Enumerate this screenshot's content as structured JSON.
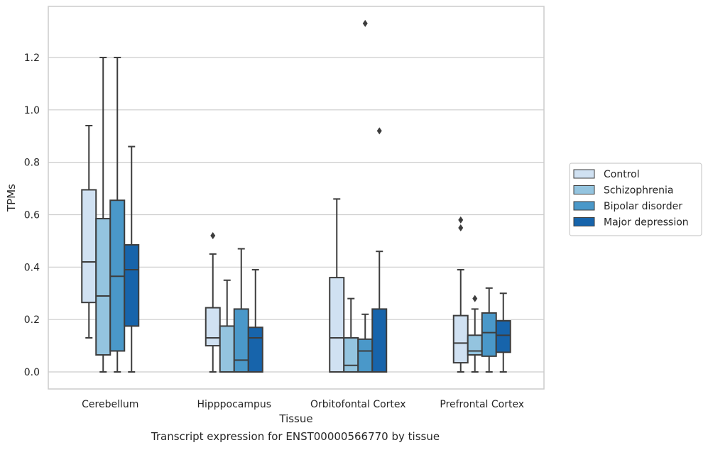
{
  "chart_data": {
    "type": "box",
    "caption": "Transcript expression for ENST00000566770 by tissue",
    "xlabel": "Tissue",
    "ylabel": "TPMs",
    "ylim": [
      -0.065,
      1.395
    ],
    "yticks": [
      0.0,
      0.2,
      0.4,
      0.6,
      0.8,
      1.0,
      1.2
    ],
    "ytick_labels": [
      "0.0",
      "0.2",
      "0.4",
      "0.6",
      "0.8",
      "1.0",
      "1.2"
    ],
    "grid": "horizontal",
    "legend_position": "right",
    "categories": [
      "Cerebellum",
      "Hipppocampus",
      "Orbitofontal Cortex",
      "Prefrontal Cortex"
    ],
    "series": [
      {
        "name": "Control",
        "color": "#d0e1f2",
        "boxes": [
          {
            "whislo": 0.13,
            "q1": 0.265,
            "med": 0.42,
            "q3": 0.695,
            "whishi": 0.94,
            "fliers": []
          },
          {
            "whislo": 0.0,
            "q1": 0.1,
            "med": 0.13,
            "q3": 0.245,
            "whishi": 0.45,
            "fliers": [
              0.52
            ]
          },
          {
            "whislo": 0.0,
            "q1": 0.0,
            "med": 0.13,
            "q3": 0.36,
            "whishi": 0.66,
            "fliers": []
          },
          {
            "whislo": 0.0,
            "q1": 0.035,
            "med": 0.11,
            "q3": 0.215,
            "whishi": 0.39,
            "fliers": [
              0.55,
              0.58
            ]
          }
        ]
      },
      {
        "name": "Schizophrenia",
        "color": "#94c4df",
        "boxes": [
          {
            "whislo": 0.0,
            "q1": 0.065,
            "med": 0.29,
            "q3": 0.585,
            "whishi": 1.2,
            "fliers": []
          },
          {
            "whislo": 0.0,
            "q1": 0.0,
            "med": 0.0,
            "q3": 0.175,
            "whishi": 0.35,
            "fliers": []
          },
          {
            "whislo": 0.0,
            "q1": 0.0,
            "med": 0.025,
            "q3": 0.13,
            "whishi": 0.28,
            "fliers": []
          },
          {
            "whislo": 0.0,
            "q1": 0.065,
            "med": 0.08,
            "q3": 0.14,
            "whishi": 0.24,
            "fliers": [
              0.28
            ]
          }
        ]
      },
      {
        "name": "Bipolar disorder",
        "color": "#4a98c9",
        "boxes": [
          {
            "whislo": 0.0,
            "q1": 0.08,
            "med": 0.365,
            "q3": 0.655,
            "whishi": 1.2,
            "fliers": []
          },
          {
            "whislo": 0.0,
            "q1": 0.0,
            "med": 0.045,
            "q3": 0.24,
            "whishi": 0.47,
            "fliers": []
          },
          {
            "whislo": 0.0,
            "q1": 0.0,
            "med": 0.08,
            "q3": 0.125,
            "whishi": 0.22,
            "fliers": [
              1.33
            ]
          },
          {
            "whislo": 0.0,
            "q1": 0.06,
            "med": 0.15,
            "q3": 0.225,
            "whishi": 0.32,
            "fliers": []
          }
        ]
      },
      {
        "name": "Major depression",
        "color": "#1764ab",
        "boxes": [
          {
            "whislo": 0.0,
            "q1": 0.175,
            "med": 0.39,
            "q3": 0.485,
            "whishi": 0.86,
            "fliers": []
          },
          {
            "whislo": 0.0,
            "q1": 0.0,
            "med": 0.13,
            "q3": 0.17,
            "whishi": 0.39,
            "fliers": []
          },
          {
            "whislo": 0.0,
            "q1": 0.0,
            "med": 0.0,
            "q3": 0.24,
            "whishi": 0.46,
            "fliers": [
              0.92
            ]
          },
          {
            "whislo": 0.0,
            "q1": 0.075,
            "med": 0.14,
            "q3": 0.195,
            "whishi": 0.3,
            "fliers": []
          }
        ]
      }
    ]
  }
}
